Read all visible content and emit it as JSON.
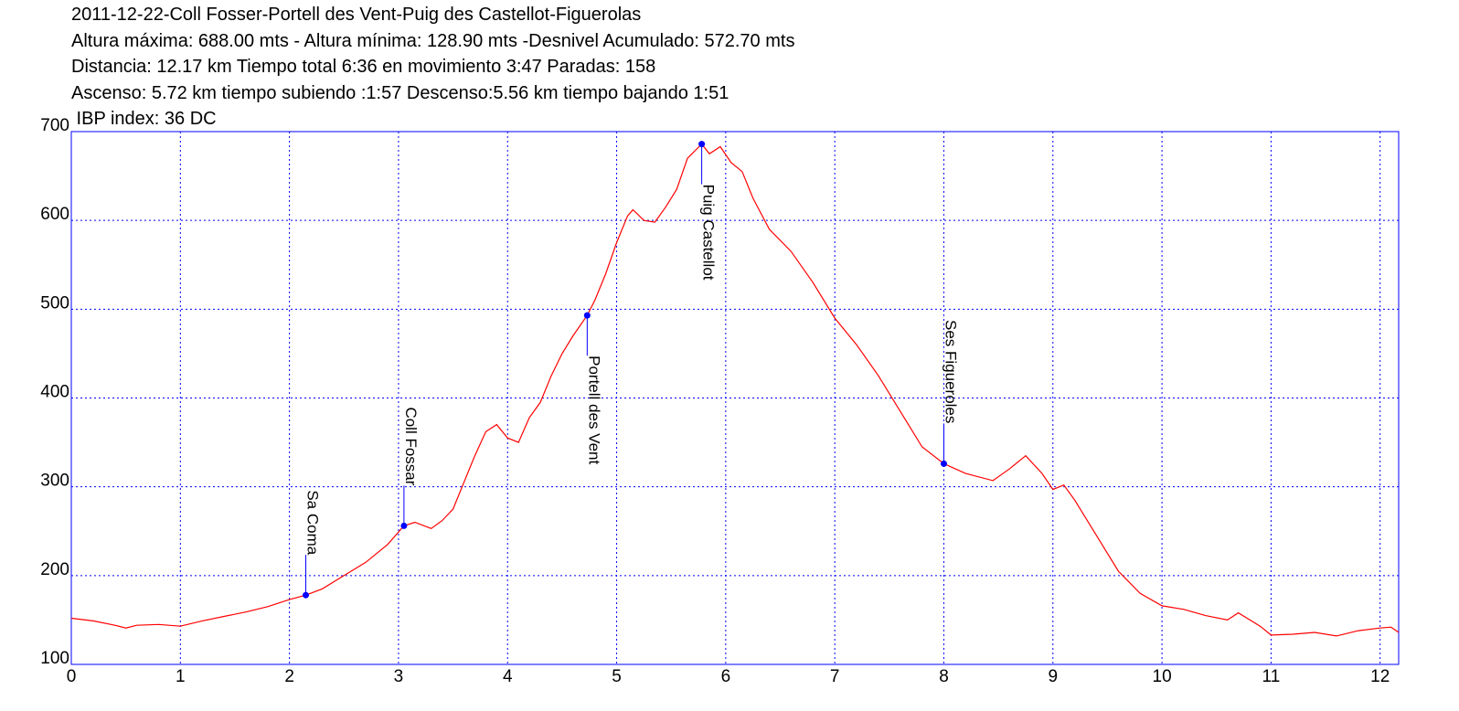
{
  "chart_data": {
    "type": "line",
    "title": "2011-12-22-Coll Fosser-Portell des Vent-Puig des Castellot-Figuerolas",
    "subtitle_lines": [
      "Altura máxima: 688.00 mts - Altura mínima: 128.90 mts -Desnivel Acumulado: 572.70 mts",
      "Distancia: 12.17 km  Tiempo total 6:36  en movimiento 3:47 Paradas: 158",
      "Ascenso: 5.72 km  tiempo subiendo :1:57  Descenso:5.56 km tiempo bajando 1:51",
      " IBP index: 36 DC"
    ],
    "color": "#ff0000",
    "x": [
      0,
      0.2,
      0.4,
      0.5,
      0.6,
      0.8,
      1.0,
      1.2,
      1.4,
      1.6,
      1.8,
      2.0,
      2.15,
      2.3,
      2.5,
      2.7,
      2.9,
      3.05,
      3.15,
      3.3,
      3.4,
      3.5,
      3.6,
      3.7,
      3.8,
      3.9,
      4.0,
      4.1,
      4.2,
      4.3,
      4.4,
      4.5,
      4.6,
      4.73,
      4.8,
      4.9,
      5.0,
      5.1,
      5.15,
      5.25,
      5.35,
      5.45,
      5.55,
      5.65,
      5.78,
      5.85,
      5.95,
      6.05,
      6.15,
      6.25,
      6.4,
      6.6,
      6.8,
      7.0,
      7.2,
      7.4,
      7.6,
      7.8,
      8.0,
      8.2,
      8.45,
      8.6,
      8.75,
      8.9,
      9.0,
      9.1,
      9.2,
      9.4,
      9.6,
      9.8,
      10.0,
      10.2,
      10.4,
      10.6,
      10.7,
      10.9,
      11.0,
      11.2,
      11.4,
      11.6,
      11.8,
      12.0,
      12.1,
      12.17
    ],
    "values": [
      152,
      149,
      144,
      141,
      144,
      145,
      143,
      149,
      154,
      159,
      165,
      173,
      178,
      185,
      200,
      215,
      235,
      256,
      260,
      253,
      262,
      275,
      305,
      335,
      362,
      370,
      355,
      350,
      378,
      395,
      425,
      450,
      470,
      493,
      510,
      540,
      575,
      605,
      612,
      600,
      598,
      615,
      635,
      670,
      686,
      675,
      683,
      665,
      655,
      625,
      590,
      565,
      530,
      490,
      460,
      425,
      385,
      345,
      326,
      315,
      307,
      320,
      335,
      315,
      297,
      302,
      285,
      245,
      205,
      180,
      166,
      162,
      155,
      150,
      158,
      143,
      133,
      134,
      136,
      132,
      138,
      141,
      142,
      136
    ],
    "annotations": [
      {
        "label": "Sa Coma",
        "x": 2.15,
        "y": 178
      },
      {
        "label": "Coll Fossar",
        "x": 3.05,
        "y": 256
      },
      {
        "label": "Portell des Vent",
        "x": 4.73,
        "y": 493
      },
      {
        "label": "Puig Castellot",
        "x": 5.78,
        "y": 686
      },
      {
        "label": "Ses Figueroles",
        "x": 8.0,
        "y": 326
      }
    ],
    "annotation_color": "#0000ff",
    "axis_color": "#0000ff",
    "xlim": [
      0,
      12.17
    ],
    "ylim": [
      100,
      700
    ],
    "xticks": [
      0,
      1,
      2,
      3,
      4,
      5,
      6,
      7,
      8,
      9,
      10,
      11,
      12
    ],
    "yticks": [
      100,
      200,
      300,
      400,
      500,
      600,
      700
    ],
    "grid": true
  }
}
